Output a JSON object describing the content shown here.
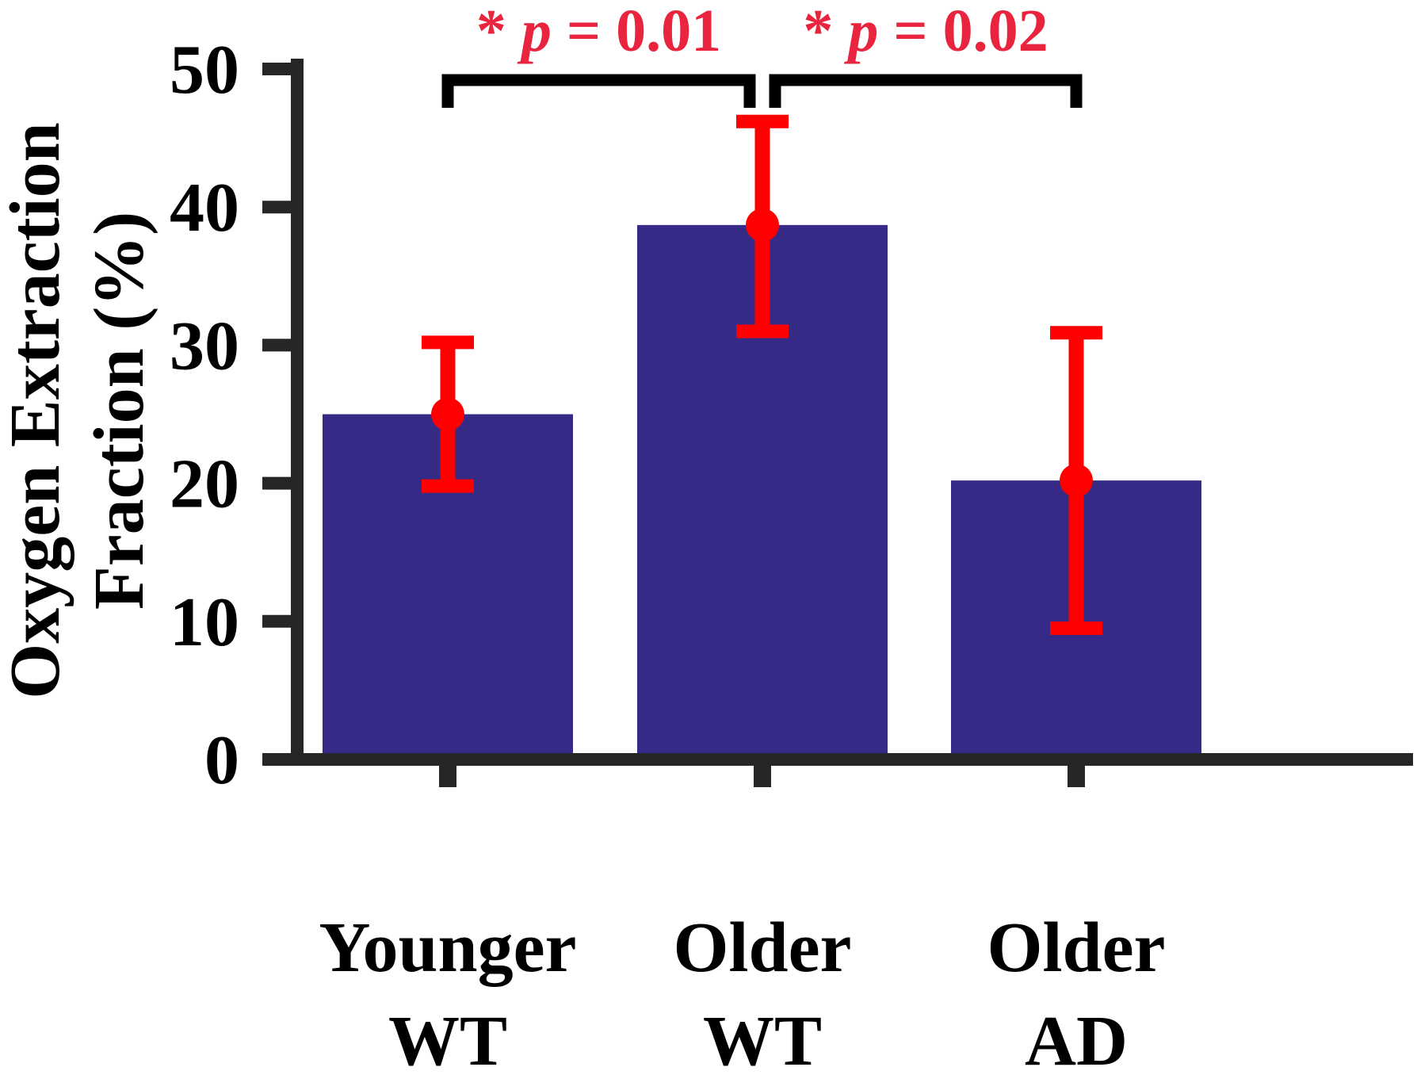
{
  "chart_data": {
    "type": "bar",
    "title": "",
    "xlabel": "",
    "ylabel": [
      "Oxygen Extraction",
      "Fraction (%)"
    ],
    "ylim": [
      0,
      50
    ],
    "yticks": [
      0,
      10,
      20,
      30,
      40,
      50
    ],
    "grid": false,
    "categories": [
      [
        "Younger",
        "WT"
      ],
      [
        "Older",
        "WT"
      ],
      [
        "Older",
        "AD"
      ]
    ],
    "values": [
      25.0,
      38.7,
      20.2
    ],
    "errors": [
      {
        "low": 19.8,
        "high": 30.2
      },
      {
        "low": 31.0,
        "high": 46.2
      },
      {
        "low": 9.5,
        "high": 30.9
      }
    ],
    "significance": [
      {
        "from": 0,
        "to": 1,
        "star": "*",
        "p_symbol": "p",
        "p_text": " = 0.01"
      },
      {
        "from": 1,
        "to": 2,
        "star": "*",
        "p_symbol": "p",
        "p_text": " = 0.02"
      }
    ],
    "colors": {
      "bar": "#352a85",
      "error": "#ff0000",
      "significance": "#e8243e",
      "axis": "#262626"
    }
  }
}
